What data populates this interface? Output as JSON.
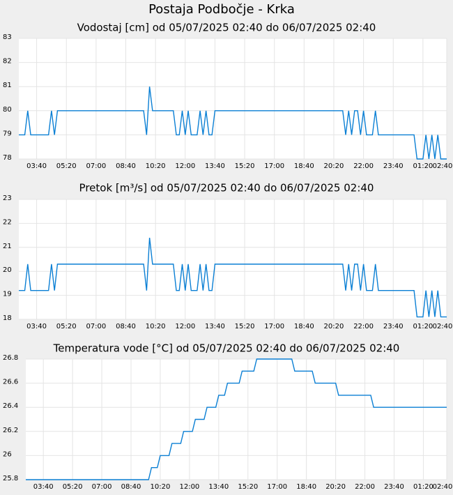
{
  "page_title": "Postaja Podbočje - Krka",
  "chart_data": [
    {
      "type": "line",
      "title": "Vodostaj [cm] od 05/07/2025 02:40 do 06/07/2025 02:40",
      "x": [
        "2025-07-05T02:40",
        "2025-07-05T03:00",
        "2025-07-05T03:10",
        "2025-07-05T03:20",
        "2025-07-05T04:20",
        "2025-07-05T04:30",
        "2025-07-05T04:40",
        "2025-07-05T04:50",
        "2025-07-05T09:40",
        "2025-07-05T09:50",
        "2025-07-05T10:00",
        "2025-07-05T10:10",
        "2025-07-05T11:20",
        "2025-07-05T11:30",
        "2025-07-05T11:40",
        "2025-07-05T11:50",
        "2025-07-05T12:00",
        "2025-07-05T12:10",
        "2025-07-05T12:20",
        "2025-07-05T12:40",
        "2025-07-05T12:50",
        "2025-07-05T13:00",
        "2025-07-05T13:10",
        "2025-07-05T13:20",
        "2025-07-05T13:30",
        "2025-07-05T13:40",
        "2025-07-05T20:50",
        "2025-07-05T21:00",
        "2025-07-05T21:10",
        "2025-07-05T21:20",
        "2025-07-05T21:30",
        "2025-07-05T21:40",
        "2025-07-05T21:50",
        "2025-07-05T22:00",
        "2025-07-05T22:10",
        "2025-07-05T22:30",
        "2025-07-05T22:40",
        "2025-07-05T22:50",
        "2025-07-06T00:50",
        "2025-07-06T01:00",
        "2025-07-06T01:20",
        "2025-07-06T01:30",
        "2025-07-06T01:40",
        "2025-07-06T01:50",
        "2025-07-06T02:00",
        "2025-07-06T02:10",
        "2025-07-06T02:20",
        "2025-07-06T02:40"
      ],
      "series": [
        {
          "color": "#0a7fd4",
          "values": [
            79,
            79,
            80,
            79,
            79,
            80,
            79,
            80,
            80,
            79,
            81,
            80,
            80,
            79,
            79,
            80,
            79,
            80,
            79,
            79,
            80,
            79,
            80,
            79,
            79,
            80,
            80,
            79,
            80,
            79,
            80,
            80,
            79,
            80,
            79,
            79,
            80,
            79,
            79,
            78,
            78,
            79,
            78,
            79,
            78,
            79,
            78,
            78
          ]
        }
      ],
      "xlim": [
        "2025-07-05T02:40",
        "2025-07-06T02:40"
      ],
      "xticks": [
        {
          "value": "2025-07-05T03:40",
          "label": "03:40"
        },
        {
          "value": "2025-07-05T05:20",
          "label": "05:20"
        },
        {
          "value": "2025-07-05T07:00",
          "label": "07:00"
        },
        {
          "value": "2025-07-05T08:40",
          "label": "08:40"
        },
        {
          "value": "2025-07-05T10:20",
          "label": "10:20"
        },
        {
          "value": "2025-07-05T12:00",
          "label": "12:00"
        },
        {
          "value": "2025-07-05T13:40",
          "label": "13:40"
        },
        {
          "value": "2025-07-05T15:20",
          "label": "15:20"
        },
        {
          "value": "2025-07-05T17:00",
          "label": "17:00"
        },
        {
          "value": "2025-07-05T18:40",
          "label": "18:40"
        },
        {
          "value": "2025-07-05T20:20",
          "label": "20:20"
        },
        {
          "value": "2025-07-05T22:00",
          "label": "22:00"
        },
        {
          "value": "2025-07-05T23:40",
          "label": "23:40"
        },
        {
          "value": "2025-07-06T01:20",
          "label": "01:20"
        },
        {
          "value": "2025-07-06T02:40",
          "label": "02:40"
        }
      ],
      "ylim": [
        78,
        83
      ],
      "yticks": [
        78,
        79,
        80,
        81,
        82,
        83
      ],
      "grid": true
    },
    {
      "type": "line",
      "title": "Pretok [m³/s] od 05/07/2025 02:40 do 06/07/2025 02:40",
      "x": [
        "2025-07-05T02:40",
        "2025-07-05T03:00",
        "2025-07-05T03:10",
        "2025-07-05T03:20",
        "2025-07-05T04:20",
        "2025-07-05T04:30",
        "2025-07-05T04:40",
        "2025-07-05T04:50",
        "2025-07-05T09:40",
        "2025-07-05T09:50",
        "2025-07-05T10:00",
        "2025-07-05T10:10",
        "2025-07-05T11:20",
        "2025-07-05T11:30",
        "2025-07-05T11:40",
        "2025-07-05T11:50",
        "2025-07-05T12:00",
        "2025-07-05T12:10",
        "2025-07-05T12:20",
        "2025-07-05T12:40",
        "2025-07-05T12:50",
        "2025-07-05T13:00",
        "2025-07-05T13:10",
        "2025-07-05T13:20",
        "2025-07-05T13:30",
        "2025-07-05T13:40",
        "2025-07-05T20:50",
        "2025-07-05T21:00",
        "2025-07-05T21:10",
        "2025-07-05T21:20",
        "2025-07-05T21:30",
        "2025-07-05T21:40",
        "2025-07-05T21:50",
        "2025-07-05T22:00",
        "2025-07-05T22:10",
        "2025-07-05T22:30",
        "2025-07-05T22:40",
        "2025-07-05T22:50",
        "2025-07-06T00:50",
        "2025-07-06T01:00",
        "2025-07-06T01:20",
        "2025-07-06T01:30",
        "2025-07-06T01:40",
        "2025-07-06T01:50",
        "2025-07-06T02:00",
        "2025-07-06T02:10",
        "2025-07-06T02:20",
        "2025-07-06T02:40"
      ],
      "series": [
        {
          "color": "#0a7fd4",
          "values": [
            19.2,
            19.2,
            20.3,
            19.2,
            19.2,
            20.3,
            19.2,
            20.3,
            20.3,
            19.2,
            21.4,
            20.3,
            20.3,
            19.2,
            19.2,
            20.3,
            19.2,
            20.3,
            19.2,
            19.2,
            20.3,
            19.2,
            20.3,
            19.2,
            19.2,
            20.3,
            20.3,
            19.2,
            20.3,
            19.2,
            20.3,
            20.3,
            19.2,
            20.3,
            19.2,
            19.2,
            20.3,
            19.2,
            19.2,
            18.1,
            18.1,
            19.2,
            18.1,
            19.2,
            18.1,
            19.2,
            18.1,
            18.1
          ]
        }
      ],
      "xlim": [
        "2025-07-05T02:40",
        "2025-07-06T02:40"
      ],
      "xticks": [
        {
          "value": "2025-07-05T03:40",
          "label": "03:40"
        },
        {
          "value": "2025-07-05T05:20",
          "label": "05:20"
        },
        {
          "value": "2025-07-05T07:00",
          "label": "07:00"
        },
        {
          "value": "2025-07-05T08:40",
          "label": "08:40"
        },
        {
          "value": "2025-07-05T10:20",
          "label": "10:20"
        },
        {
          "value": "2025-07-05T12:00",
          "label": "12:00"
        },
        {
          "value": "2025-07-05T13:40",
          "label": "13:40"
        },
        {
          "value": "2025-07-05T15:20",
          "label": "15:20"
        },
        {
          "value": "2025-07-05T17:00",
          "label": "17:00"
        },
        {
          "value": "2025-07-05T18:40",
          "label": "18:40"
        },
        {
          "value": "2025-07-05T20:20",
          "label": "20:20"
        },
        {
          "value": "2025-07-05T22:00",
          "label": "22:00"
        },
        {
          "value": "2025-07-05T23:40",
          "label": "23:40"
        },
        {
          "value": "2025-07-06T01:20",
          "label": "01:20"
        },
        {
          "value": "2025-07-06T02:40",
          "label": "02:40"
        }
      ],
      "ylim": [
        18,
        23
      ],
      "yticks": [
        18,
        19,
        20,
        21,
        22,
        23
      ],
      "grid": true
    },
    {
      "type": "line",
      "title": "Temperatura vode [°C] od 05/07/2025 02:40 do 06/07/2025 02:40",
      "x": [
        "2025-07-05T02:40",
        "2025-07-05T09:40",
        "2025-07-05T09:50",
        "2025-07-05T10:10",
        "2025-07-05T10:20",
        "2025-07-05T10:50",
        "2025-07-05T11:00",
        "2025-07-05T11:30",
        "2025-07-05T11:40",
        "2025-07-05T12:10",
        "2025-07-05T12:20",
        "2025-07-05T12:50",
        "2025-07-05T13:00",
        "2025-07-05T13:30",
        "2025-07-05T13:40",
        "2025-07-05T14:00",
        "2025-07-05T14:10",
        "2025-07-05T14:50",
        "2025-07-05T15:00",
        "2025-07-05T15:40",
        "2025-07-05T15:50",
        "2025-07-05T17:50",
        "2025-07-05T18:00",
        "2025-07-05T19:00",
        "2025-07-05T19:10",
        "2025-07-05T20:20",
        "2025-07-05T20:30",
        "2025-07-05T22:20",
        "2025-07-05T22:30",
        "2025-07-06T02:40"
      ],
      "series": [
        {
          "color": "#0a7fd4",
          "values": [
            25.8,
            25.8,
            25.9,
            25.9,
            26.0,
            26.0,
            26.1,
            26.1,
            26.2,
            26.2,
            26.3,
            26.3,
            26.4,
            26.4,
            26.5,
            26.5,
            26.6,
            26.6,
            26.7,
            26.7,
            26.8,
            26.8,
            26.7,
            26.7,
            26.6,
            26.6,
            26.5,
            26.5,
            26.4,
            26.4
          ]
        }
      ],
      "xlim": [
        "2025-07-05T02:40",
        "2025-07-06T02:40"
      ],
      "xticks": [
        {
          "value": "2025-07-05T03:40",
          "label": "03:40"
        },
        {
          "value": "2025-07-05T05:20",
          "label": "05:20"
        },
        {
          "value": "2025-07-05T07:00",
          "label": "07:00"
        },
        {
          "value": "2025-07-05T08:40",
          "label": "08:40"
        },
        {
          "value": "2025-07-05T10:20",
          "label": "10:20"
        },
        {
          "value": "2025-07-05T12:00",
          "label": "12:00"
        },
        {
          "value": "2025-07-05T13:40",
          "label": "13:40"
        },
        {
          "value": "2025-07-05T15:20",
          "label": "15:20"
        },
        {
          "value": "2025-07-05T17:00",
          "label": "17:00"
        },
        {
          "value": "2025-07-05T18:40",
          "label": "18:40"
        },
        {
          "value": "2025-07-05T20:20",
          "label": "20:20"
        },
        {
          "value": "2025-07-05T22:00",
          "label": "22:00"
        },
        {
          "value": "2025-07-05T23:40",
          "label": "23:40"
        },
        {
          "value": "2025-07-06T01:20",
          "label": "01:20"
        },
        {
          "value": "2025-07-06T02:40",
          "label": "02:40"
        }
      ],
      "ylim": [
        25.8,
        26.8
      ],
      "yticks": [
        25.8,
        26,
        26.2,
        26.4,
        26.6,
        26.8
      ],
      "grid": true
    }
  ]
}
